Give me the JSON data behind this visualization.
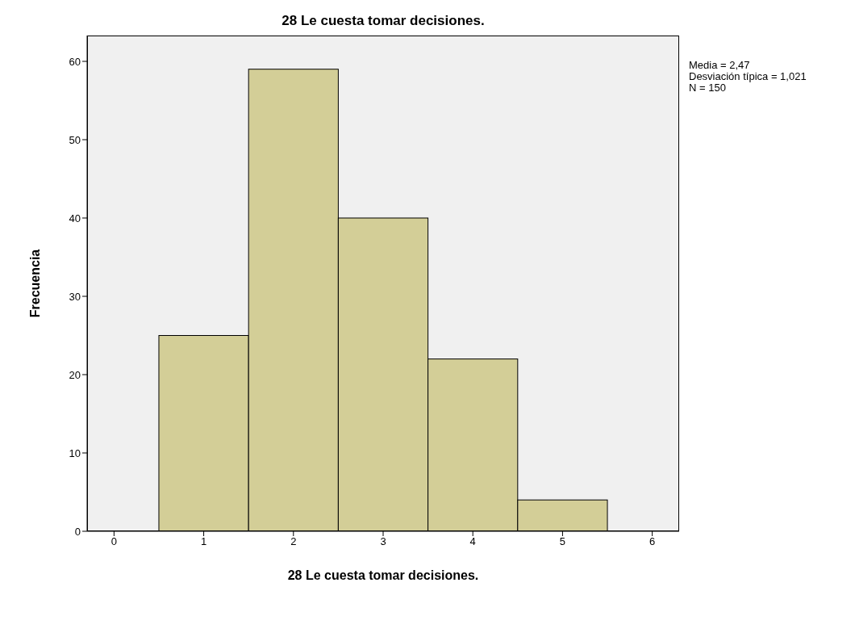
{
  "chart_data": {
    "type": "histogram",
    "title": "28 Le cuesta tomar decisiones.",
    "xlabel": "28 Le cuesta tomar decisiones.",
    "ylabel": "Frecuencia",
    "bins": [
      0.5,
      1.5,
      2.5,
      3.5,
      4.5,
      5.5
    ],
    "values": [
      25,
      59,
      40,
      22,
      4
    ],
    "color": "#d3ce97",
    "xlim": [
      -0.3,
      6.3
    ],
    "xticks": [
      0,
      1,
      2,
      3,
      4,
      5,
      6
    ],
    "ylim": [
      0,
      63.3
    ],
    "yticks": [
      0,
      10,
      20,
      30,
      40,
      50,
      60
    ],
    "grid": false,
    "annotations": [
      "Media = 2,47",
      "Desviación típica = 1,021",
      "N = 150"
    ]
  }
}
